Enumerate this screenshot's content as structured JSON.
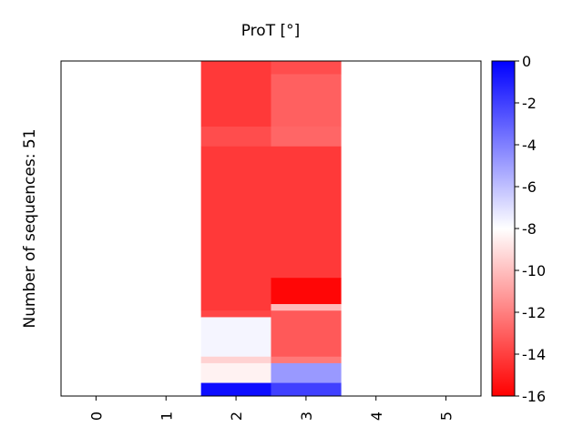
{
  "chart_data": {
    "type": "heatmap",
    "title": "ProT [°]",
    "xlabel": "",
    "ylabel": "Number of sequences: 51",
    "x_tick_labels": [
      "0",
      "1",
      "2",
      "3",
      "4",
      "5"
    ],
    "n_rows": 51,
    "colormap": "bwr",
    "colorbar": {
      "range": [
        -16,
        0
      ],
      "tick_labels": [
        "0",
        "-2",
        "-4",
        "-6",
        "-8",
        "-10",
        "-12",
        "-14",
        "-16"
      ],
      "tick_values": [
        0,
        -2,
        -4,
        -6,
        -8,
        -10,
        -12,
        -14,
        -16
      ],
      "top_color": "#0000ff",
      "mid_color": "#ffffff",
      "bottom_color": "#ff0000"
    },
    "columns": [
      {
        "x": "0",
        "segments": []
      },
      {
        "x": "1",
        "segments": []
      },
      {
        "x": "2",
        "segments": [
          {
            "rows": [
              0,
              9
            ],
            "value": -14.2
          },
          {
            "rows": [
              10,
              12
            ],
            "value": -13.6
          },
          {
            "rows": [
              13,
              37
            ],
            "value": -14.2
          },
          {
            "rows": [
              38,
              38
            ],
            "value": -13.8
          },
          {
            "rows": [
              39,
              44
            ],
            "value": -7.7
          },
          {
            "rows": [
              45,
              45
            ],
            "value": -9.4
          },
          {
            "rows": [
              46,
              48
            ],
            "value": -8.4
          },
          {
            "rows": [
              49,
              50
            ],
            "value": -0.4
          }
        ]
      },
      {
        "x": "3",
        "segments": [
          {
            "rows": [
              0,
              1
            ],
            "value": -13.6
          },
          {
            "rows": [
              2,
              9
            ],
            "value": -13.0
          },
          {
            "rows": [
              10,
              12
            ],
            "value": -12.8
          },
          {
            "rows": [
              13,
              32
            ],
            "value": -14.2
          },
          {
            "rows": [
              33,
              36
            ],
            "value": -15.8
          },
          {
            "rows": [
              37,
              37
            ],
            "value": -10.2
          },
          {
            "rows": [
              38,
              44
            ],
            "value": -13.2
          },
          {
            "rows": [
              45,
              45
            ],
            "value": -12.2
          },
          {
            "rows": [
              46,
              48
            ],
            "value": -4.8
          },
          {
            "rows": [
              49,
              50
            ],
            "value": -2.0
          }
        ]
      },
      {
        "x": "4",
        "segments": []
      },
      {
        "x": "5",
        "segments": []
      }
    ]
  }
}
